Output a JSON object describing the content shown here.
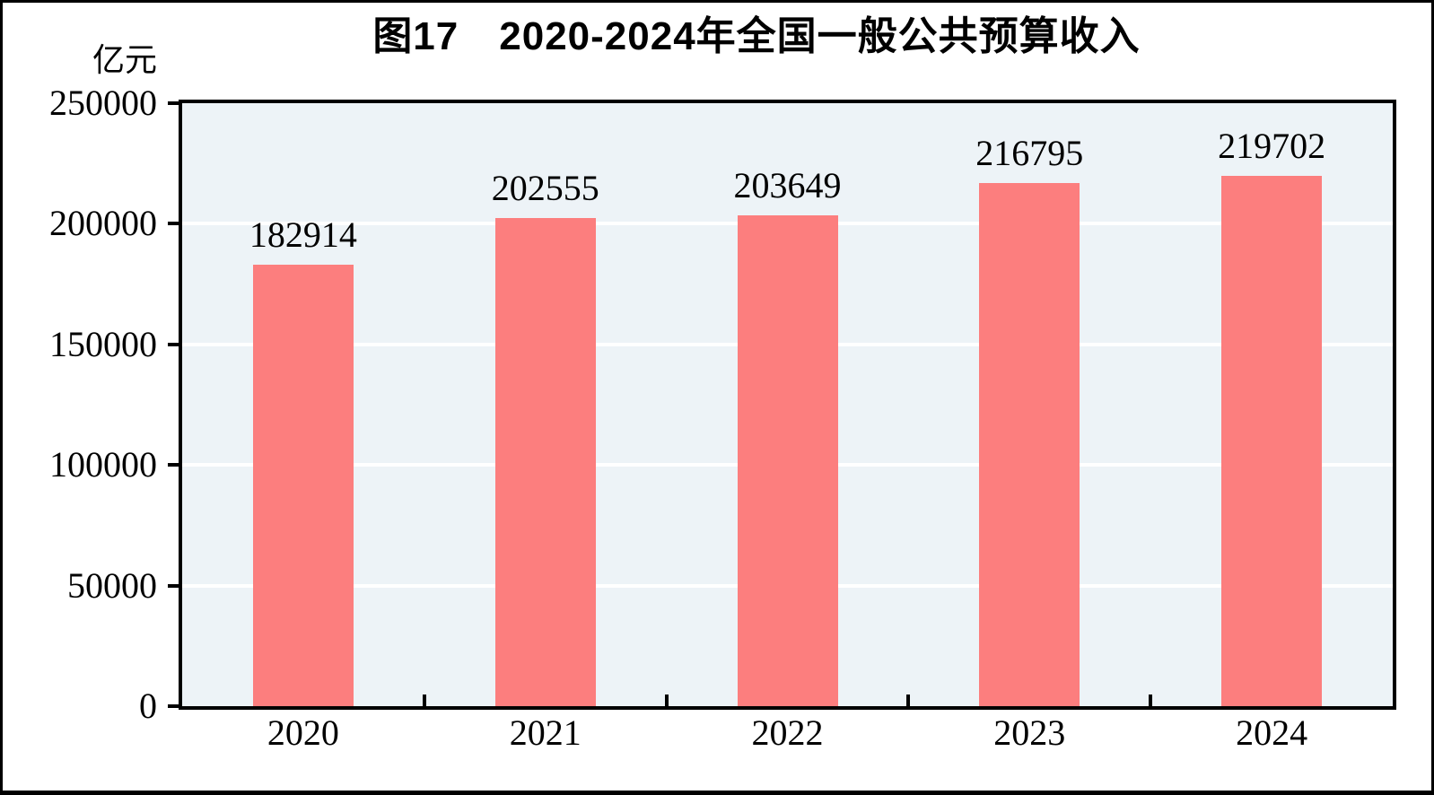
{
  "chart_data": {
    "type": "bar",
    "title": "图17　2020-2024年全国一般公共预算收入",
    "ylabel": "亿元",
    "xlabel": "",
    "categories": [
      "2020",
      "2021",
      "2022",
      "2023",
      "2024"
    ],
    "values": [
      182914,
      202555,
      203649,
      216795,
      219702
    ],
    "ylim": [
      0,
      250000
    ],
    "yticks": [
      0,
      50000,
      100000,
      150000,
      200000,
      250000
    ],
    "grid": "horizontal white gridlines at each y tick",
    "legend_position": "none",
    "data_labels": true,
    "bar_color": "#FC7E7E",
    "plot_background": "#EDF3F7",
    "axis_color": "#000000",
    "text_color": "#000000",
    "gridline_color": "#FFFFFF"
  }
}
